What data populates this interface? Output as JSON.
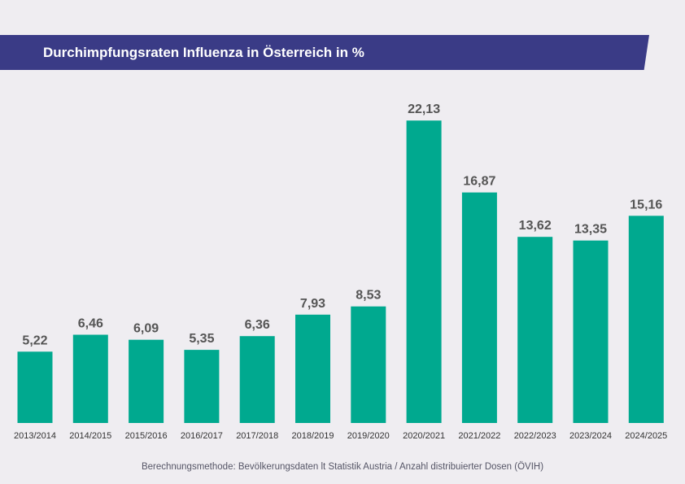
{
  "chart_data": {
    "type": "bar",
    "title": "Durchimpfungsraten Influenza in Österreich in %",
    "categories": [
      "2013/2014",
      "2014/2015",
      "2015/2016",
      "2016/2017",
      "2017/2018",
      "2018/2019",
      "2019/2020",
      "2020/2021",
      "2021/2022",
      "2022/2023",
      "2023/2024",
      "2024/2025"
    ],
    "values": [
      5.22,
      6.46,
      6.09,
      5.35,
      6.36,
      7.93,
      8.53,
      22.13,
      16.87,
      13.62,
      13.35,
      15.16
    ],
    "value_labels": [
      "5,22",
      "6,46",
      "6,09",
      "5,35",
      "6,36",
      "7,93",
      "8,53",
      "22,13",
      "16,87",
      "13,62",
      "13,35",
      "15,16"
    ],
    "xlabel": "",
    "ylabel": "",
    "ylim": [
      0,
      25
    ],
    "grid": false,
    "legend": "none",
    "bar_color": "#00a98f",
    "footnote": "Berechnungsmethode: Bevölkerungsdaten lt Statistik Austria / Anzahl distribuierter Dosen (ÖVIH)"
  },
  "colors": {
    "title_banner": "#3a3b86",
    "background": "#efedf1",
    "bar": "#00a98f",
    "value_label": "#555555",
    "axis_label": "#333333"
  }
}
